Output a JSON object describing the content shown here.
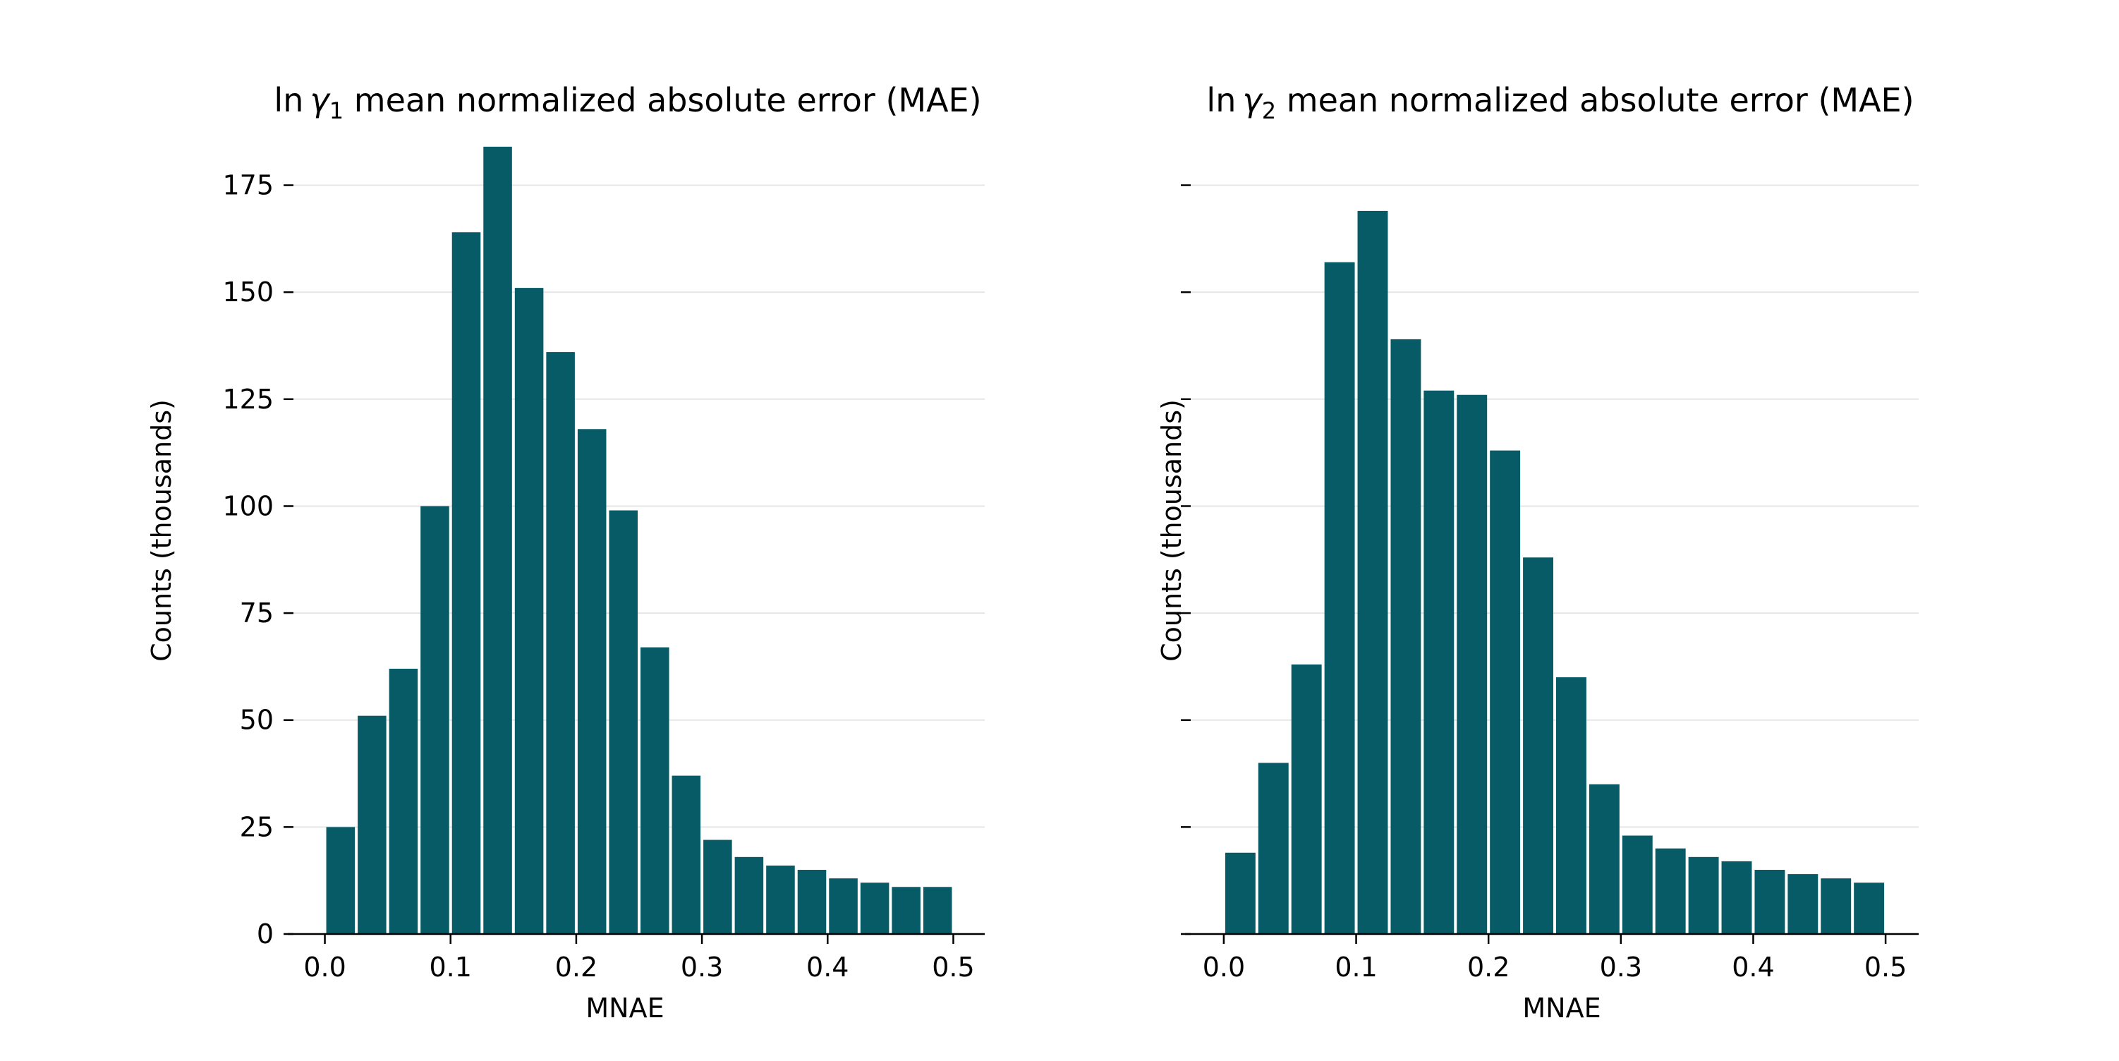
{
  "chart_data": [
    {
      "type": "bar",
      "title_prefix": "ln",
      "title_var": "γ",
      "title_sub": "1",
      "title_rest": "mean normalized absolute error (MAE)",
      "xlabel": "MNAE",
      "ylabel": "Counts (thousands)",
      "xlim": [
        -0.025,
        0.525
      ],
      "ylim": [
        0,
        183
      ],
      "xticks": [
        0.0,
        0.1,
        0.2,
        0.3,
        0.4,
        0.5
      ],
      "yticks": [
        0,
        25,
        50,
        75,
        100,
        125,
        150,
        175
      ],
      "ytick_labels_visible": true,
      "grid": "y",
      "bar_color": "#065b66",
      "bin_width": 0.025,
      "bin_starts": [
        0.0,
        0.025,
        0.05,
        0.075,
        0.1,
        0.125,
        0.15,
        0.175,
        0.2,
        0.225,
        0.25,
        0.275,
        0.3,
        0.325,
        0.35,
        0.375,
        0.4,
        0.425,
        0.45,
        0.475
      ],
      "values": [
        25,
        51,
        62,
        100,
        164,
        184,
        151,
        136,
        118,
        99,
        67,
        37,
        22,
        18,
        16,
        15,
        13,
        12,
        11,
        11
      ]
    },
    {
      "type": "bar",
      "title_prefix": "ln",
      "title_var": "γ",
      "title_sub": "2",
      "title_rest": "mean normalized absolute error (MAE)",
      "xlabel": "MNAE",
      "ylabel": "Counts (thousands)",
      "xlim": [
        -0.025,
        0.525
      ],
      "ylim": [
        0,
        183
      ],
      "xticks": [
        0.0,
        0.1,
        0.2,
        0.3,
        0.4,
        0.5
      ],
      "yticks": [
        0,
        25,
        50,
        75,
        100,
        125,
        150,
        175
      ],
      "ytick_labels_visible": false,
      "grid": "y",
      "bar_color": "#065b66",
      "bin_width": 0.025,
      "bin_starts": [
        0.0,
        0.025,
        0.05,
        0.075,
        0.1,
        0.125,
        0.15,
        0.175,
        0.2,
        0.225,
        0.25,
        0.275,
        0.3,
        0.325,
        0.35,
        0.375,
        0.4,
        0.425,
        0.45,
        0.475
      ],
      "values": [
        19,
        40,
        63,
        157,
        169,
        139,
        127,
        126,
        113,
        88,
        60,
        35,
        23,
        20,
        18,
        17,
        15,
        14,
        13,
        12
      ]
    }
  ]
}
